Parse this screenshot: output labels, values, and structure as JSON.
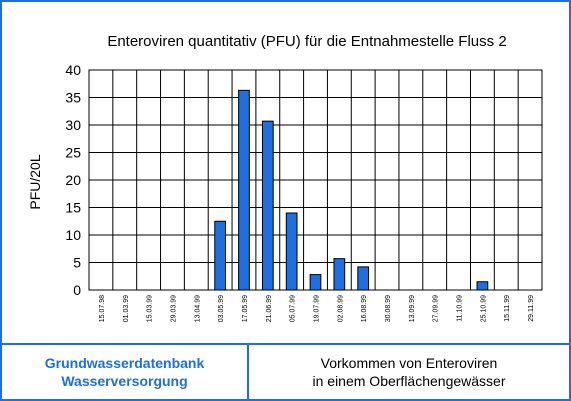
{
  "chart_data": {
    "type": "bar",
    "title": "Enteroviren quantitativ (PFU) für die Entnahmestelle Fluss 2",
    "ylabel": "PFU/20L",
    "xlabel": "",
    "ylim": [
      0,
      40
    ],
    "yticks": [
      0,
      5,
      10,
      15,
      20,
      25,
      30,
      35,
      40
    ],
    "grid": true,
    "categories": [
      "15.07.98",
      "01.03.99",
      "15.03.99",
      "29.03.99",
      "13.04.99",
      "03.05.99",
      "17.05.99",
      "21.06.99",
      "05.07.99",
      "19.07.99",
      "02.08.99",
      "16.08.99",
      "30.08.99",
      "13.09.99",
      "27.09.99",
      "11.10.99",
      "25.10.99",
      "15.11.99",
      "29.11.99"
    ],
    "values": [
      0,
      0,
      0,
      0,
      0,
      12.5,
      36.3,
      30.7,
      14,
      2.8,
      5.7,
      4.2,
      0,
      0,
      0,
      0,
      1.5,
      0,
      0
    ],
    "bar_color": "#1f6fe0"
  },
  "footer": {
    "left_line1": "Grundwasserdatenbank",
    "left_line2": "Wasserversorgung",
    "right_line1": "Vorkommen von Enteroviren",
    "right_line2": "in einem Oberflächengewässer"
  }
}
